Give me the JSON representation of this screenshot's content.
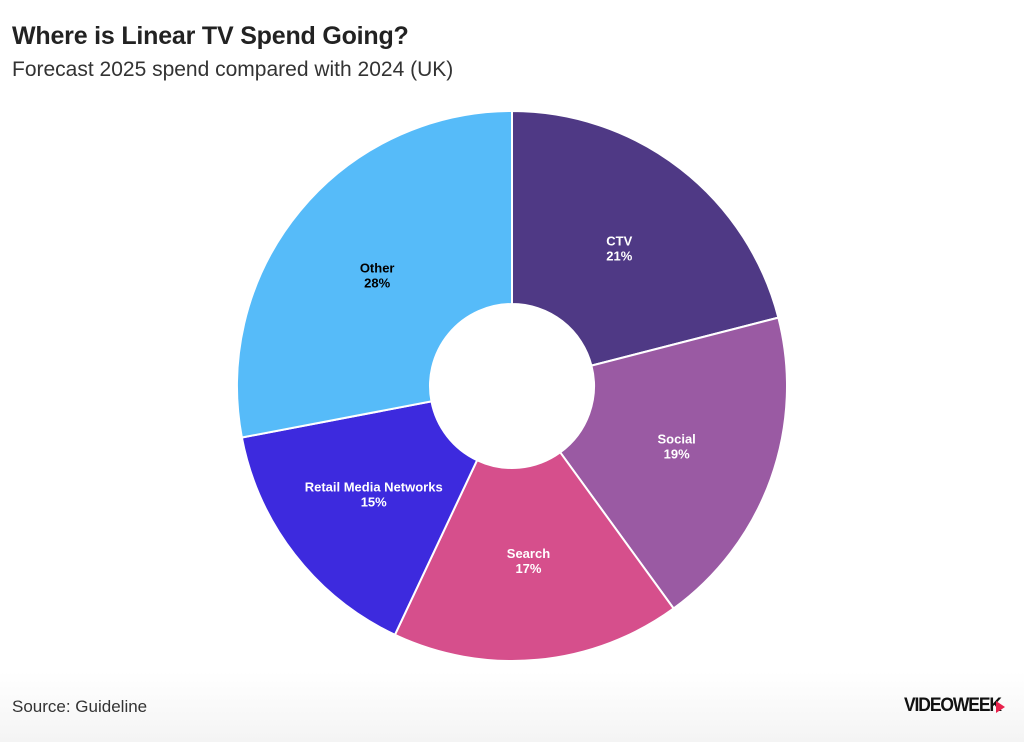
{
  "header": {
    "title": "Where is Linear TV Spend Going?",
    "subtitle": "Forecast 2025 spend compared with 2024 (UK)"
  },
  "footer": {
    "source": "Source: Guideline",
    "brand": "VIDEOWEEK"
  },
  "colors": {
    "brand_accent": "#e8214c"
  },
  "chart_data": {
    "type": "pie",
    "subtype": "donut",
    "title": "Where is Linear TV Spend Going?",
    "subtitle": "Forecast 2025 spend compared with 2024 (UK)",
    "slices": [
      {
        "label": "CTV",
        "value": 21,
        "value_label": "21%",
        "color": "#4f3985",
        "text_color": "#ffffff"
      },
      {
        "label": "Social",
        "value": 19,
        "value_label": "19%",
        "color": "#9a5aa3",
        "text_color": "#ffffff"
      },
      {
        "label": "Search",
        "value": 17,
        "value_label": "17%",
        "color": "#d64f8c",
        "text_color": "#ffffff"
      },
      {
        "label": "Retail Media Networks",
        "value": 15,
        "value_label": "15%",
        "color": "#3d2ade",
        "text_color": "#ffffff"
      },
      {
        "label": "Other",
        "value": 28,
        "value_label": "28%",
        "color": "#56bbf9",
        "text_color": "#000000"
      }
    ]
  }
}
